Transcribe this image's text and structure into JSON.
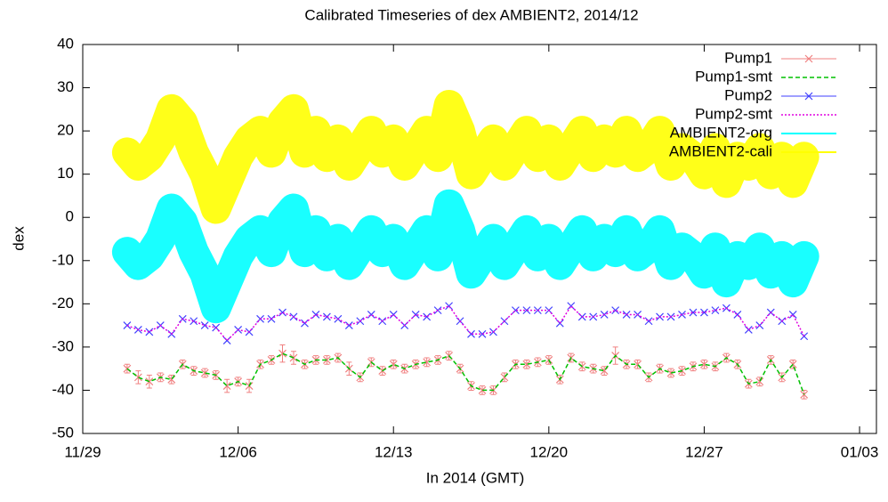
{
  "chart_data": {
    "type": "line",
    "title": "Calibrated Timeseries of dex AMBIENT2, 2014/12",
    "x_label": "In 2014 (GMT)",
    "y_label": "dex",
    "xlim": [
      0,
      35.76
    ],
    "ylim": [
      -50,
      40
    ],
    "xticks": [
      {
        "value": 0,
        "label": "11/29"
      },
      {
        "value": 7,
        "label": "12/06"
      },
      {
        "value": 14,
        "label": "12/13"
      },
      {
        "value": 21,
        "label": "12/20"
      },
      {
        "value": 28,
        "label": "12/27"
      },
      {
        "value": 35,
        "label": "01/03"
      }
    ],
    "yticks": [
      -50,
      -40,
      -30,
      -20,
      -10,
      0,
      10,
      20,
      30,
      40
    ],
    "legend": "top right",
    "x": [
      2,
      2.5,
      3,
      3.5,
      4,
      4.5,
      5,
      5.5,
      6,
      6.5,
      7,
      7.5,
      8,
      8.5,
      9,
      9.5,
      10,
      10.5,
      11,
      11.5,
      12,
      12.5,
      13,
      13.5,
      14,
      14.5,
      15,
      15.5,
      16,
      16.5,
      17,
      17.5,
      18,
      18.5,
      19,
      19.5,
      20,
      20.5,
      21,
      21.5,
      22,
      22.5,
      23,
      23.5,
      24,
      24.5,
      25,
      25.5,
      26,
      26.5,
      27,
      27.5,
      28,
      28.5,
      29,
      29.5,
      30,
      30.5,
      31,
      31.5,
      32,
      32.5
    ],
    "series": [
      {
        "name": "Pump1",
        "color": "#f08080",
        "style": "points",
        "marker": "x",
        "values": [
          -35,
          -37,
          -38,
          -37,
          -37.5,
          -34,
          -35.5,
          -36,
          -36.5,
          -39,
          -38,
          -39,
          -34,
          -33,
          -31.5,
          -32.5,
          -34,
          -33,
          -33,
          -32.5,
          -35,
          -37,
          -33.5,
          -35.5,
          -34,
          -35,
          -34,
          -33.5,
          -33,
          -32,
          -35,
          -39,
          -40,
          -40,
          -37,
          -34,
          -34,
          -33.5,
          -33,
          -37.5,
          -32.5,
          -34.5,
          -35,
          -35.5,
          -32,
          -34,
          -34,
          -37,
          -35,
          -36,
          -35.5,
          -34.5,
          -34,
          -34.5,
          -32.5,
          -34,
          -38.5,
          -38,
          -33,
          -37,
          -34,
          -41
        ],
        "errors": [
          1,
          1.5,
          1.5,
          1,
          1,
          1,
          1,
          1,
          1,
          1.5,
          1,
          1.5,
          1,
          1,
          2,
          1.5,
          1,
          1,
          1,
          1,
          1.5,
          1,
          1,
          1,
          1,
          1,
          1,
          1,
          1,
          1,
          1,
          1,
          1,
          1,
          1,
          1,
          1,
          1,
          1,
          1,
          1,
          1,
          1,
          1,
          2,
          1,
          1,
          1,
          1,
          1,
          1,
          1,
          1,
          1,
          1,
          1,
          1,
          1,
          1,
          1,
          1,
          1
        ]
      },
      {
        "name": "Pump1-smt",
        "color": "#00c000",
        "style": "dashed",
        "values": [
          -35,
          -37,
          -38,
          -37,
          -37.5,
          -34,
          -35.5,
          -36,
          -36.5,
          -39,
          -38,
          -39,
          -34,
          -33,
          -31.5,
          -32.5,
          -34,
          -33,
          -33,
          -32.5,
          -35,
          -37,
          -33.5,
          -35.5,
          -34,
          -35,
          -34,
          -33.5,
          -33,
          -32,
          -35,
          -39,
          -40,
          -40,
          -37,
          -34,
          -34,
          -33.5,
          -33,
          -37.5,
          -32.5,
          -34.5,
          -35,
          -35.5,
          -32,
          -34,
          -34,
          -37,
          -35,
          -36,
          -35.5,
          -34.5,
          -34,
          -34.5,
          -32.5,
          -34,
          -38.5,
          -38,
          -33,
          -37,
          -34,
          -41
        ]
      },
      {
        "name": "Pump2",
        "color": "#4040ff",
        "style": "points",
        "marker": "x",
        "values": [
          -25,
          -26,
          -26.5,
          -25,
          -27,
          -23.5,
          -24,
          -25,
          -25.5,
          -28.5,
          -26,
          -26.5,
          -23.5,
          -23.5,
          -22,
          -23,
          -24.5,
          -22.5,
          -23,
          -23.5,
          -25,
          -24,
          -22.5,
          -24,
          -22.5,
          -25,
          -22.5,
          -23,
          -21.5,
          -20.5,
          -24,
          -27,
          -27,
          -26.5,
          -24,
          -21.5,
          -21.5,
          -21.5,
          -21.5,
          -24.5,
          -20.5,
          -23,
          -23,
          -22.5,
          -21.5,
          -22.5,
          -22.5,
          -24,
          -23,
          -23,
          -22.5,
          -22,
          -22,
          -21.5,
          -21,
          -22.5,
          -26,
          -25,
          -22,
          -24,
          -22.5,
          -27.5
        ]
      },
      {
        "name": "Pump2-smt",
        "color": "#e000e0",
        "style": "dotted",
        "values": [
          -25,
          -26,
          -26.5,
          -25,
          -27,
          -23.5,
          -24,
          -25,
          -25.5,
          -28.5,
          -26,
          -26.5,
          -23.5,
          -23.5,
          -22,
          -23,
          -24.5,
          -22.5,
          -23,
          -23.5,
          -25,
          -24,
          -22.5,
          -24,
          -22.5,
          -25,
          -22.5,
          -23,
          -21.5,
          -20.5,
          -24,
          -27,
          -27,
          -26.5,
          -24,
          -21.5,
          -21.5,
          -21.5,
          -21.5,
          -24.5,
          -20.5,
          -23,
          -23,
          -22.5,
          -21.5,
          -22.5,
          -22.5,
          -24,
          -23,
          -23,
          -22.5,
          -22,
          -22,
          -21.5,
          -21,
          -22.5,
          -26,
          -25,
          -22,
          -24,
          -22.5,
          -27.5
        ]
      },
      {
        "name": "AMBIENT2-org",
        "color": "#00ffff",
        "style": "cloud",
        "values": [
          -8,
          -11,
          -9,
          -5,
          2,
          -1,
          -8,
          -13,
          -21,
          -15,
          -9,
          -5,
          -3,
          -8,
          -1,
          2,
          -8,
          -3,
          -9,
          -5,
          -11,
          -7,
          -3,
          -8,
          -5,
          -11,
          -7,
          -3,
          -9,
          3,
          -3,
          -13,
          -9,
          -5,
          -11,
          -7,
          -3,
          -9,
          -5,
          -11,
          -7,
          -3,
          -9,
          -5,
          -8,
          -3,
          -9,
          -7,
          -3,
          -11,
          -7,
          -9,
          -13,
          -7,
          -15,
          -9,
          -11,
          -7,
          -13,
          -9,
          -15,
          -9
        ]
      },
      {
        "name": "AMBIENT2-cali",
        "color": "#ffff00",
        "style": "cloud",
        "values": [
          15,
          12,
          14,
          18,
          25,
          22,
          15,
          10,
          2,
          8,
          14,
          18,
          20,
          15,
          22,
          25,
          15,
          20,
          14,
          18,
          12,
          16,
          20,
          15,
          18,
          12,
          16,
          20,
          14,
          26,
          20,
          10,
          14,
          18,
          12,
          16,
          20,
          14,
          18,
          12,
          16,
          20,
          14,
          18,
          15,
          20,
          14,
          16,
          20,
          12,
          16,
          14,
          10,
          16,
          8,
          14,
          12,
          16,
          10,
          14,
          8,
          14
        ]
      }
    ]
  }
}
